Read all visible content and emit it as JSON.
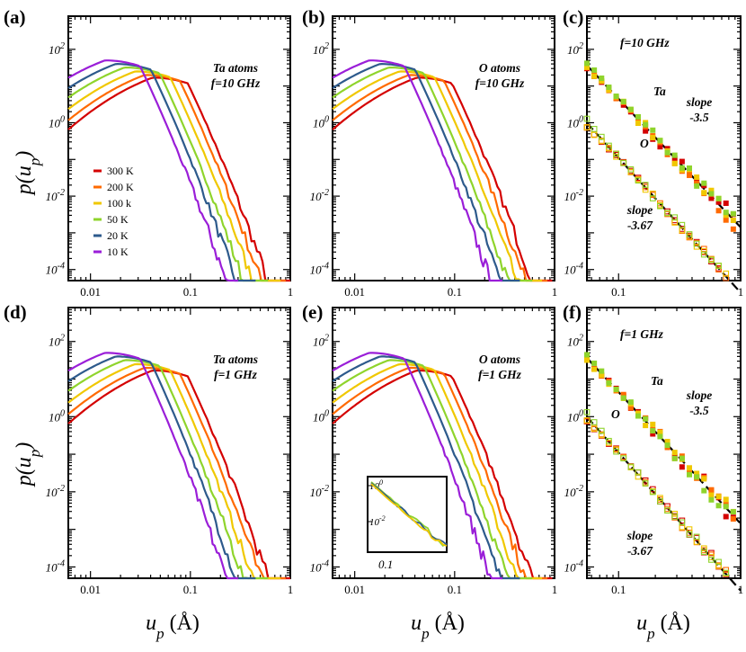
{
  "figure": {
    "ylabel_main": "p(u",
    "ylabel_sub": "p",
    "ylabel_close": ")",
    "xlabel_main": "u",
    "xlabel_sub": "p",
    "xlabel_unit": " (Å)"
  },
  "colors": {
    "300 K": "#d40000",
    "200 K": "#ff6a00",
    "100 K": "#f0c800",
    "50 K": "#8fd42c",
    "20 K": "#2d5a8c",
    "10 K": "#9a1ed8"
  },
  "legend": [
    "300 K",
    "200 K",
    "100 k",
    "50 K",
    "20 K",
    "10 K"
  ],
  "ticks": {
    "x_labels": [
      "0.01",
      "0.1",
      "1"
    ],
    "y_labels": [
      "10",
      "10",
      "10",
      "10"
    ],
    "y_exps": [
      "2",
      "0",
      "-2",
      "-4"
    ],
    "x_labels_right": [
      "0.1",
      "1"
    ]
  },
  "chart_data": [
    {
      "panel": "a",
      "label": "(a)",
      "type": "line",
      "log_x": true,
      "log_y": true,
      "xlim": [
        0.006,
        1.0
      ],
      "ylim": [
        5e-05,
        800
      ],
      "annotation": [
        "Ta atoms",
        "f=10 GHz"
      ],
      "series": [
        {
          "name": "300 K",
          "peak_x": 0.042,
          "peak_y": 17,
          "cutoff_x": 1.0
        },
        {
          "name": "200 K",
          "peak_x": 0.035,
          "peak_y": 20,
          "cutoff_x": 0.9
        },
        {
          "name": "100 k",
          "peak_x": 0.028,
          "peak_y": 25,
          "cutoff_x": 0.8
        },
        {
          "name": "50 K",
          "peak_x": 0.022,
          "peak_y": 32,
          "cutoff_x": 0.6
        },
        {
          "name": "20 K",
          "peak_x": 0.018,
          "peak_y": 40,
          "cutoff_x": 0.45
        },
        {
          "name": "10 K",
          "peak_x": 0.014,
          "peak_y": 50,
          "cutoff_x": 0.3
        }
      ]
    },
    {
      "panel": "b",
      "label": "(b)",
      "type": "line",
      "log_x": true,
      "log_y": true,
      "xlim": [
        0.006,
        1.0
      ],
      "ylim": [
        5e-05,
        800
      ],
      "annotation": [
        "O atoms",
        "f=10 GHz"
      ],
      "series": [
        {
          "name": "300 K",
          "peak_x": 0.042,
          "peak_y": 17,
          "cutoff_x": 0.95
        },
        {
          "name": "200 K",
          "peak_x": 0.035,
          "peak_y": 20,
          "cutoff_x": 0.85
        },
        {
          "name": "100 k",
          "peak_x": 0.028,
          "peak_y": 25,
          "cutoff_x": 0.75
        },
        {
          "name": "50 K",
          "peak_x": 0.022,
          "peak_y": 32,
          "cutoff_x": 0.6
        },
        {
          "name": "20 K",
          "peak_x": 0.018,
          "peak_y": 40,
          "cutoff_x": 0.45
        },
        {
          "name": "10 K",
          "peak_x": 0.014,
          "peak_y": 50,
          "cutoff_x": 0.3
        }
      ]
    },
    {
      "panel": "c",
      "label": "(c)",
      "type": "scatter",
      "log_x": true,
      "log_y": true,
      "xlim": [
        0.055,
        1.0
      ],
      "ylim": [
        5e-05,
        800
      ],
      "annotation": [
        "f=10 GHz"
      ],
      "labels": [
        "Ta",
        "O"
      ],
      "slope_labels": [
        [
          "slope",
          "-3.5"
        ],
        [
          "slope",
          "-3.67"
        ]
      ],
      "fits": [
        {
          "slope": -3.5,
          "x": [
            0.055,
            1.0
          ],
          "y_at_0_1": 4.5
        },
        {
          "slope": -3.67,
          "x": [
            0.055,
            1.0
          ],
          "y_at_0_1": 0.11
        }
      ]
    },
    {
      "panel": "d",
      "label": "(d)",
      "type": "line",
      "log_x": true,
      "log_y": true,
      "xlim": [
        0.006,
        1.0
      ],
      "ylim": [
        5e-05,
        800
      ],
      "annotation": [
        "Ta atoms",
        "f=1 GHz"
      ],
      "series": [
        {
          "name": "300 K",
          "peak_x": 0.042,
          "peak_y": 17,
          "cutoff_x": 1.0
        },
        {
          "name": "200 K",
          "peak_x": 0.035,
          "peak_y": 20,
          "cutoff_x": 0.9
        },
        {
          "name": "100 k",
          "peak_x": 0.028,
          "peak_y": 25,
          "cutoff_x": 0.8
        },
        {
          "name": "50 K",
          "peak_x": 0.022,
          "peak_y": 32,
          "cutoff_x": 0.6
        },
        {
          "name": "20 K",
          "peak_x": 0.018,
          "peak_y": 40,
          "cutoff_x": 0.45
        },
        {
          "name": "10 K",
          "peak_x": 0.014,
          "peak_y": 50,
          "cutoff_x": 0.3
        }
      ]
    },
    {
      "panel": "e",
      "label": "(e)",
      "type": "line",
      "log_x": true,
      "log_y": true,
      "xlim": [
        0.006,
        1.0
      ],
      "ylim": [
        5e-05,
        800
      ],
      "annotation": [
        "O atoms",
        "f=1 GHz"
      ],
      "inset": {
        "ticks_y": [
          "10",
          "10"
        ],
        "exps_y": [
          "0",
          "-2"
        ],
        "ticks_x": [
          "0.1"
        ]
      },
      "series": [
        {
          "name": "300 K",
          "peak_x": 0.042,
          "peak_y": 17,
          "cutoff_x": 0.95
        },
        {
          "name": "200 K",
          "peak_x": 0.035,
          "peak_y": 20,
          "cutoff_x": 0.85
        },
        {
          "name": "100 k",
          "peak_x": 0.028,
          "peak_y": 25,
          "cutoff_x": 0.75
        },
        {
          "name": "50 K",
          "peak_x": 0.022,
          "peak_y": 32,
          "cutoff_x": 0.6
        },
        {
          "name": "20 K",
          "peak_x": 0.018,
          "peak_y": 40,
          "cutoff_x": 0.45
        },
        {
          "name": "10 K",
          "peak_x": 0.014,
          "peak_y": 50,
          "cutoff_x": 0.3
        }
      ]
    },
    {
      "panel": "f",
      "label": "(f)",
      "type": "scatter",
      "log_x": true,
      "log_y": true,
      "xlim": [
        0.055,
        1.0
      ],
      "ylim": [
        5e-05,
        800
      ],
      "annotation": [
        "f=1 GHz"
      ],
      "labels": [
        "Ta",
        "O"
      ],
      "slope_labels": [
        [
          "slope",
          "-3.5"
        ],
        [
          "slope",
          "-3.67"
        ]
      ],
      "fits": [
        {
          "slope": -3.5,
          "x": [
            0.055,
            1.0
          ],
          "y_at_0_1": 4.5
        },
        {
          "slope": -3.67,
          "x": [
            0.055,
            1.0
          ],
          "y_at_0_1": 0.11
        }
      ]
    }
  ]
}
